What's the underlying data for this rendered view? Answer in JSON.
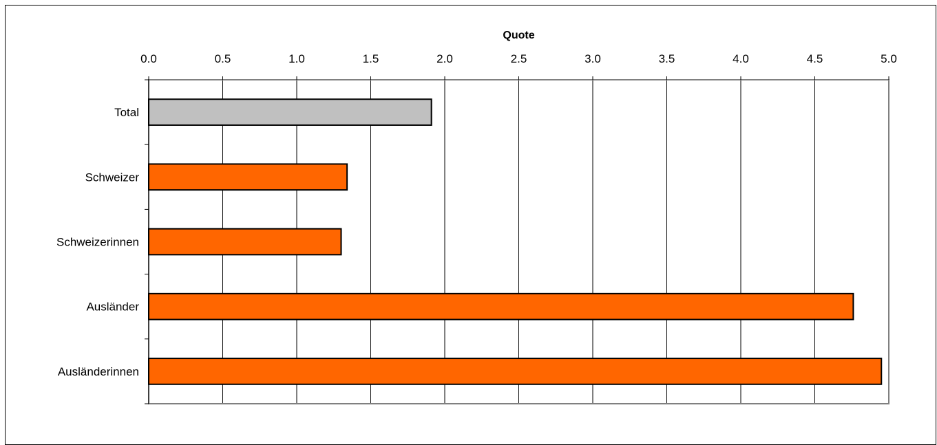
{
  "chart_data": {
    "type": "bar",
    "orientation": "horizontal",
    "xlabel": "Quote",
    "xaxis_position": "top",
    "xlim": [
      0,
      5
    ],
    "xticks": [
      0,
      0.5,
      1,
      1.5,
      2,
      2.5,
      3,
      3.5,
      4,
      4.5,
      5
    ],
    "xtick_labels": [
      "0.0",
      "0.5",
      "1.0",
      "1.5",
      "2.0",
      "2.5",
      "3.0",
      "3.5",
      "4.0",
      "4.5",
      "5.0"
    ],
    "grid": "vertical",
    "categories": [
      "Total",
      "Schweizer",
      "Schweizerinnen",
      "Ausländer",
      "Ausländerinnen"
    ],
    "values": [
      1.91,
      1.34,
      1.3,
      4.76,
      4.95
    ],
    "bar_colors": [
      "#c0c0c0",
      "#ff6600",
      "#ff6600",
      "#ff6600",
      "#ff6600"
    ]
  }
}
